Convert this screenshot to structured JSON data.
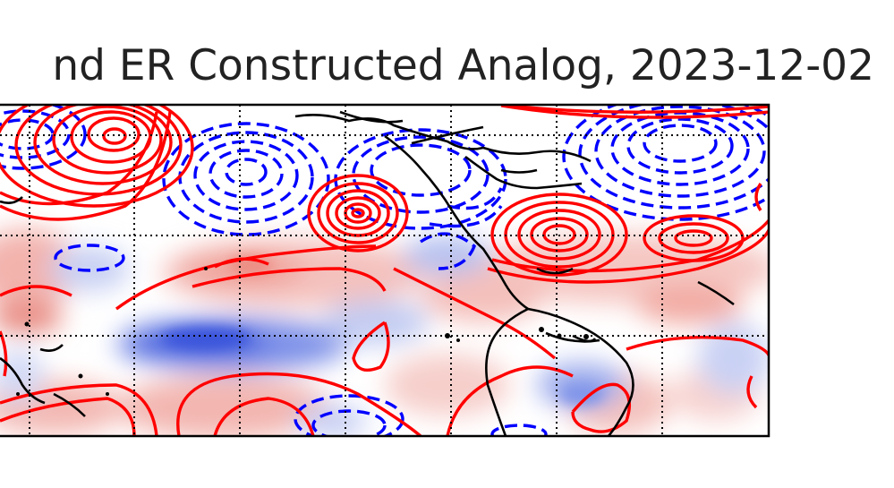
{
  "figure": {
    "title": "nd ER Constructed Analog, 2023-12-02"
  },
  "map": {
    "projection": "plate-carree",
    "grid": "dotted",
    "shading": {
      "positive_color": "#e8453c",
      "negative_color": "#2b44d8",
      "description_hidden": true
    },
    "contours": {
      "positive": {
        "color": "#ff0000",
        "style": "solid"
      },
      "negative": {
        "color": "#0000ff",
        "style": "dashed"
      }
    },
    "coastline_color": "#000000"
  }
}
